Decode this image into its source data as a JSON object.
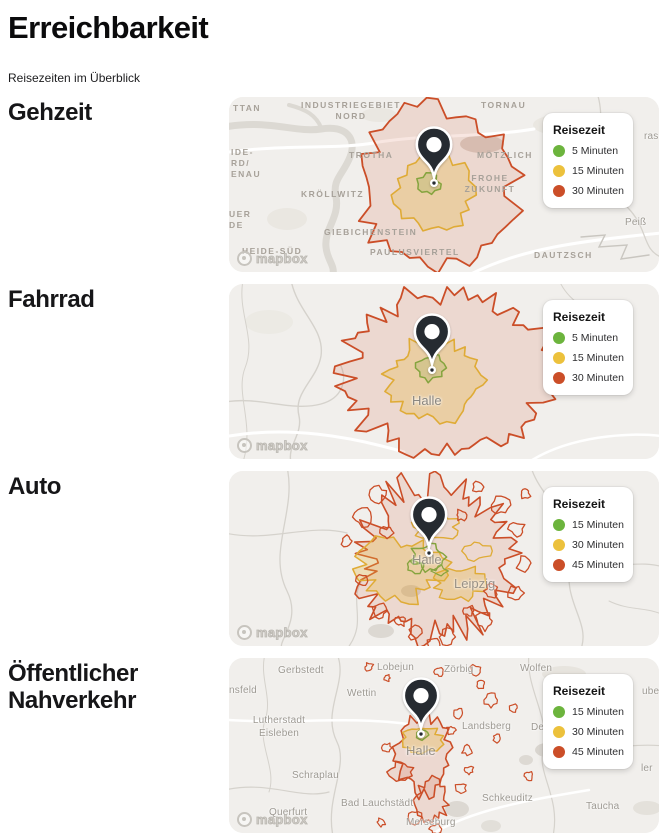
{
  "page": {
    "title": "Erreichbarkeit",
    "subtitle": "Reisezeiten im Überblick",
    "mapbox_label": "mapbox"
  },
  "colors": {
    "green": "#6cb43d",
    "yellow": "#ecc13c",
    "red": "#cb4e28"
  },
  "sections": [
    {
      "label": "Gehzeit",
      "legend": {
        "title": "Reisezeit",
        "items": [
          {
            "label": "5 Minuten",
            "color": "green"
          },
          {
            "label": "15 Minuten",
            "color": "yellow"
          },
          {
            "label": "30 Minuten",
            "color": "red"
          }
        ]
      },
      "map_labels": [
        "TTAN",
        "INDUSTRIEGEBIET\nNORD",
        "TORNAU",
        "IDE-\nRD/\nENAU",
        "TROTHA",
        "MÖTZLICH",
        "FROHE\nZUKUNFT",
        "KRÖLLWITZ",
        "GIEBICHENSTEIN",
        "PAULUSVIERTEL",
        "DAUTZSCH",
        "UER\nDE",
        "ras",
        "Peiß",
        "HEIDE-SÜD"
      ]
    },
    {
      "label": "Fahrrad",
      "legend": {
        "title": "Reisezeit",
        "items": [
          {
            "label": "5 Minuten",
            "color": "green"
          },
          {
            "label": "15 Minuten",
            "color": "yellow"
          },
          {
            "label": "30 Minuten",
            "color": "red"
          }
        ]
      },
      "map_labels": [
        "Halle"
      ]
    },
    {
      "label": "Auto",
      "legend": {
        "title": "Reisezeit",
        "items": [
          {
            "label": "15 Minuten",
            "color": "green"
          },
          {
            "label": "30 Minuten",
            "color": "yellow"
          },
          {
            "label": "45 Minuten",
            "color": "red"
          }
        ]
      },
      "map_labels": [
        "Halle",
        "Leipzig"
      ]
    },
    {
      "label": "Öffentlicher Nahverkehr",
      "legend": {
        "title": "Reisezeit",
        "items": [
          {
            "label": "15 Minuten",
            "color": "green"
          },
          {
            "label": "30 Minuten",
            "color": "yellow"
          },
          {
            "label": "45 Minuten",
            "color": "red"
          }
        ]
      },
      "map_labels": [
        "Gerbstedt",
        "Lobejun",
        "Zörbig",
        "Wolfen",
        "nsfeld",
        "Wettin",
        "Lutherstadt\nEisleben",
        "Landsberg",
        "Deli",
        "Schraplau",
        "Halle",
        "Bad Lauchstädt",
        "Schkeuditz",
        "Querfurt",
        "Merseburg",
        "Taucha",
        "ler",
        "ube"
      ]
    }
  ]
}
